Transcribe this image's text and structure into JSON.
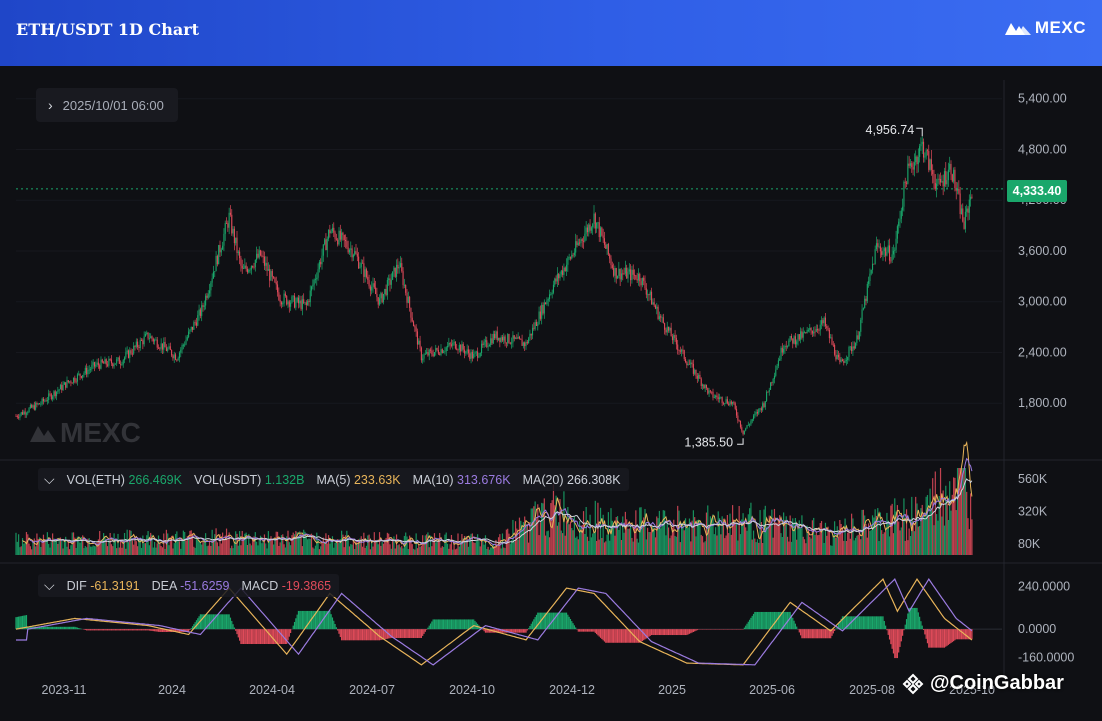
{
  "header": {
    "title": "ETH/USDT 1D Chart",
    "brand": "MEXC"
  },
  "toolbar": {
    "date": "2025/10/01 06:00"
  },
  "watermark": "MEXC",
  "credit": "@CoinGabbar",
  "colors": {
    "up": "#1aa76b",
    "down": "#e04b5a",
    "ma5": "#e8b45a",
    "ma10": "#9b7be0",
    "ma20": "#cfd3dc",
    "accent": "#2f5ee6"
  },
  "chart_data": [
    {
      "type": "candlestick",
      "title": "ETH/USDT 1D Chart",
      "x_ticks": [
        "2023-11",
        "2024",
        "2024-04",
        "2024-07",
        "2024-10",
        "2024-12",
        "2025",
        "2025-06",
        "2025-08",
        "2025-10"
      ],
      "y_ticks": [
        "5,400.00",
        "4,800.00",
        "4,200.00",
        "3,600.00",
        "3,000.00",
        "2,400.00",
        "1,800.00"
      ],
      "ylim": [
        1200,
        5550
      ],
      "last_price": 4333.4,
      "last_price_label": "4,333.40",
      "high_label": "4,956.74",
      "low_label": "1,385.50",
      "close_trend": [
        {
          "x": "2023-10-01",
          "y": 1650
        },
        {
          "x": "2023-10-20",
          "y": 1800
        },
        {
          "x": "2023-11-10",
          "y": 2050
        },
        {
          "x": "2023-12-01",
          "y": 2250
        },
        {
          "x": "2023-12-20",
          "y": 2300
        },
        {
          "x": "2024-01-10",
          "y": 2600
        },
        {
          "x": "2024-02-01",
          "y": 2350
        },
        {
          "x": "2024-02-20",
          "y": 2900
        },
        {
          "x": "2024-03-12",
          "y": 4000
        },
        {
          "x": "2024-03-22",
          "y": 3350
        },
        {
          "x": "2024-04-05",
          "y": 3550
        },
        {
          "x": "2024-04-20",
          "y": 3050
        },
        {
          "x": "2024-05-10",
          "y": 2950
        },
        {
          "x": "2024-05-28",
          "y": 3850
        },
        {
          "x": "2024-06-15",
          "y": 3600
        },
        {
          "x": "2024-07-05",
          "y": 3000
        },
        {
          "x": "2024-07-20",
          "y": 3450
        },
        {
          "x": "2024-08-06",
          "y": 2350
        },
        {
          "x": "2024-09-01",
          "y": 2500
        },
        {
          "x": "2024-09-15",
          "y": 2350
        },
        {
          "x": "2024-10-01",
          "y": 2600
        },
        {
          "x": "2024-10-25",
          "y": 2500
        },
        {
          "x": "2024-11-15",
          "y": 3200
        },
        {
          "x": "2024-12-01",
          "y": 3600
        },
        {
          "x": "2024-12-16",
          "y": 4000
        },
        {
          "x": "2025-01-01",
          "y": 3350
        },
        {
          "x": "2025-01-20",
          "y": 3300
        },
        {
          "x": "2025-02-05",
          "y": 2800
        },
        {
          "x": "2025-02-25",
          "y": 2300
        },
        {
          "x": "2025-03-15",
          "y": 1900
        },
        {
          "x": "2025-04-01",
          "y": 1800
        },
        {
          "x": "2025-04-09",
          "y": 1460
        },
        {
          "x": "2025-04-25",
          "y": 1800
        },
        {
          "x": "2025-05-10",
          "y": 2500
        },
        {
          "x": "2025-05-25",
          "y": 2600
        },
        {
          "x": "2025-06-10",
          "y": 2750
        },
        {
          "x": "2025-06-22",
          "y": 2250
        },
        {
          "x": "2025-07-05",
          "y": 2550
        },
        {
          "x": "2025-07-20",
          "y": 3650
        },
        {
          "x": "2025-08-02",
          "y": 3550
        },
        {
          "x": "2025-08-12",
          "y": 4500
        },
        {
          "x": "2025-08-24",
          "y": 4850
        },
        {
          "x": "2025-09-05",
          "y": 4350
        },
        {
          "x": "2025-09-15",
          "y": 4600
        },
        {
          "x": "2025-09-25",
          "y": 3900
        },
        {
          "x": "2025-10-01",
          "y": 4333
        }
      ]
    },
    {
      "type": "bar",
      "title": "VOL",
      "indicator": {
        "vol_eth_label": "VOL(ETH)",
        "vol_eth": "266.469K",
        "vol_usdt_label": "VOL(USDT)",
        "vol_usdt": "1.132B",
        "ma5_label": "MA(5)",
        "ma5": "233.63K",
        "ma10_label": "MA(10)",
        "ma10": "313.676K",
        "ma20_label": "MA(20)",
        "ma20": "266.308K"
      },
      "y_ticks": [
        "560K",
        "320K",
        "80K"
      ],
      "ylim": [
        0,
        640000
      ],
      "level_trend": [
        {
          "x": "2023-10-01",
          "y": 110000
        },
        {
          "x": "2024-03-01",
          "y": 130000
        },
        {
          "x": "2024-08-06",
          "y": 110000
        },
        {
          "x": "2024-10-01",
          "y": 100000
        },
        {
          "x": "2024-11-15",
          "y": 340000
        },
        {
          "x": "2025-01-01",
          "y": 220000
        },
        {
          "x": "2025-04-09",
          "y": 260000
        },
        {
          "x": "2025-06-15",
          "y": 160000
        },
        {
          "x": "2025-08-24",
          "y": 320000
        },
        {
          "x": "2025-09-25",
          "y": 640000
        },
        {
          "x": "2025-10-01",
          "y": 266000
        }
      ]
    },
    {
      "type": "bar",
      "title": "MACD",
      "indicator": {
        "dif_label": "DIF",
        "dif": "-61.3191",
        "dea_label": "DEA",
        "dea": "-51.6259",
        "macd_label": "MACD",
        "macd": "-19.3865"
      },
      "y_ticks": [
        "240.0000",
        "0.0000",
        "-160.0000"
      ],
      "ylim": [
        -240,
        320
      ],
      "dif_trend": [
        {
          "x": "2023-10-01",
          "y": 0
        },
        {
          "x": "2023-11-15",
          "y": 60
        },
        {
          "x": "2024-01-10",
          "y": 20
        },
        {
          "x": "2024-02-10",
          "y": -30
        },
        {
          "x": "2024-03-12",
          "y": 230
        },
        {
          "x": "2024-04-25",
          "y": -140
        },
        {
          "x": "2024-05-28",
          "y": 200
        },
        {
          "x": "2024-07-05",
          "y": -40
        },
        {
          "x": "2024-08-06",
          "y": -200
        },
        {
          "x": "2024-09-15",
          "y": 20
        },
        {
          "x": "2024-10-25",
          "y": -60
        },
        {
          "x": "2024-11-25",
          "y": 230
        },
        {
          "x": "2024-12-16",
          "y": 200
        },
        {
          "x": "2025-01-20",
          "y": -70
        },
        {
          "x": "2025-02-25",
          "y": -190
        },
        {
          "x": "2025-04-09",
          "y": -200
        },
        {
          "x": "2025-05-15",
          "y": 150
        },
        {
          "x": "2025-06-15",
          "y": -10
        },
        {
          "x": "2025-07-25",
          "y": 280
        },
        {
          "x": "2025-08-05",
          "y": 100
        },
        {
          "x": "2025-08-20",
          "y": 280
        },
        {
          "x": "2025-09-10",
          "y": 60
        },
        {
          "x": "2025-10-01",
          "y": -61
        }
      ]
    }
  ]
}
